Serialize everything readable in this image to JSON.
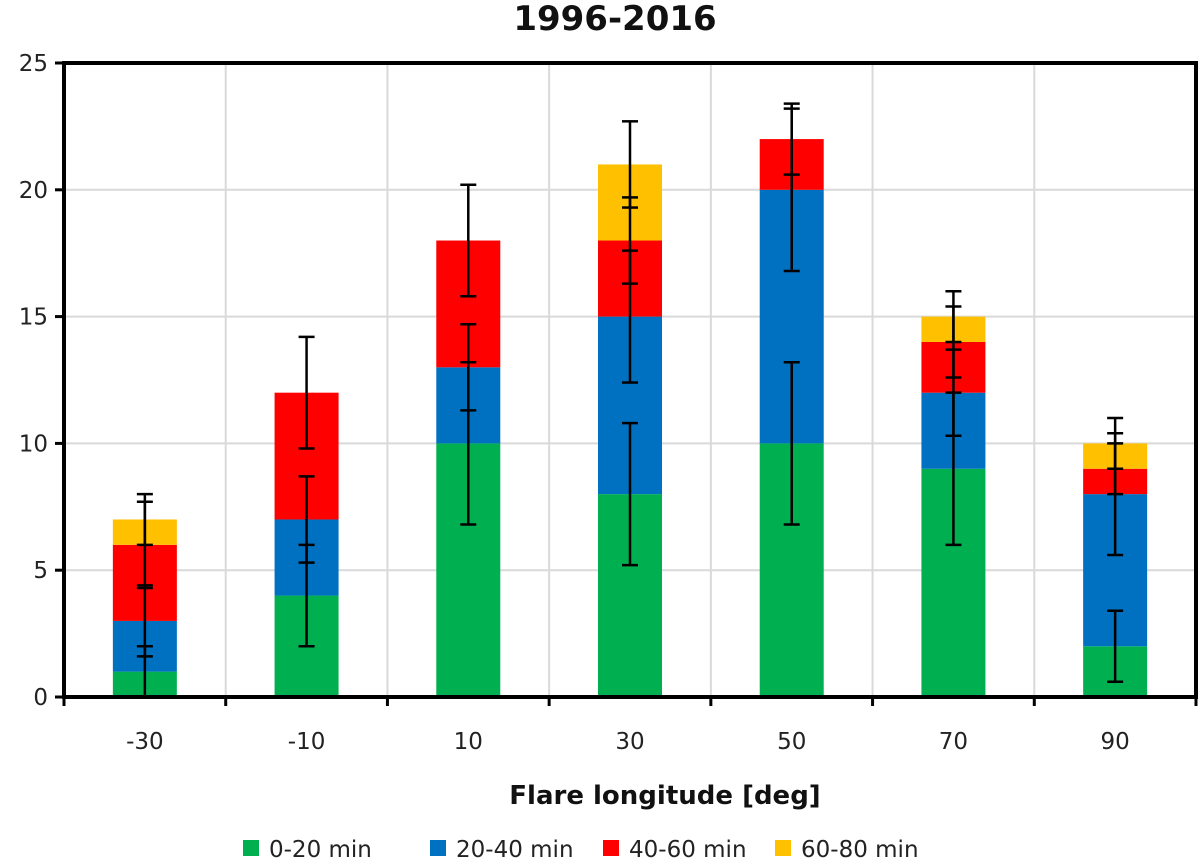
{
  "chart_data": {
    "type": "bar",
    "stacked": true,
    "title": "1996-2016",
    "xlabel": "Flare longitude [deg]",
    "ylabel": "",
    "categories": [
      "-30",
      "-10",
      "10",
      "30",
      "50",
      "70",
      "90"
    ],
    "ylim": [
      0,
      25
    ],
    "yticks": [
      0,
      5,
      10,
      15,
      20,
      25
    ],
    "grid": true,
    "legend_position": "bottom",
    "series": [
      {
        "name": "0-20 min",
        "color": "#00b050",
        "values": [
          1,
          4,
          10,
          8,
          10,
          9,
          2
        ],
        "error": [
          1.0,
          2.0,
          3.2,
          2.8,
          3.2,
          3.0,
          1.4
        ]
      },
      {
        "name": "20-40 min",
        "color": "#0070c0",
        "values": [
          2,
          3,
          3,
          7,
          10,
          3,
          6
        ],
        "error": [
          1.4,
          1.7,
          1.7,
          2.6,
          3.2,
          1.7,
          2.4
        ]
      },
      {
        "name": "40-60 min",
        "color": "#ff0000",
        "values": [
          3,
          5,
          5,
          3,
          2,
          2,
          1
        ],
        "error": [
          1.7,
          2.2,
          2.2,
          1.7,
          1.4,
          1.4,
          1.0
        ]
      },
      {
        "name": "60-80 min",
        "color": "#ffc000",
        "values": [
          1,
          0,
          0,
          3,
          0,
          1,
          1
        ],
        "error": [
          1.0,
          0,
          0,
          1.7,
          0,
          1.0,
          1.0
        ]
      }
    ]
  }
}
